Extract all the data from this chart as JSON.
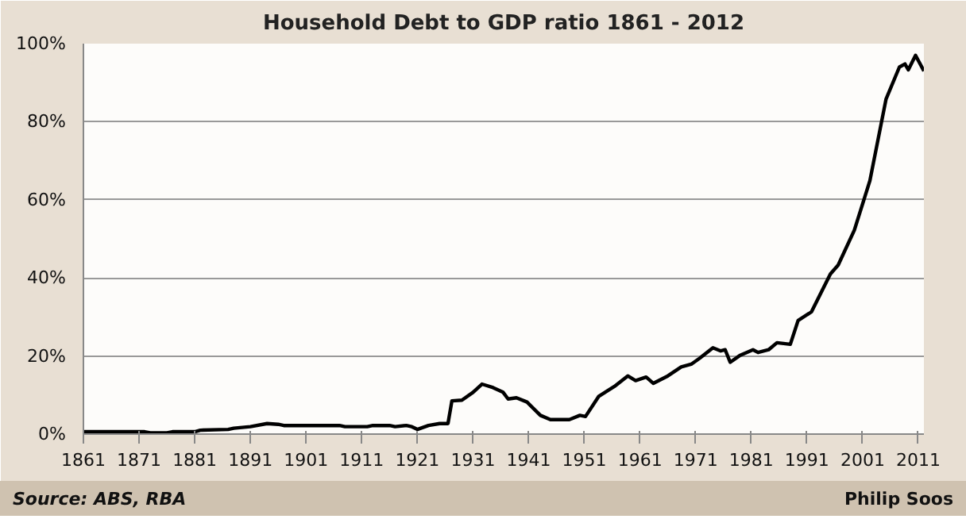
{
  "chart_data": {
    "type": "line",
    "title": "Household Debt to GDP ratio 1861 - 2012",
    "x": [
      1861,
      1872,
      1873,
      1876,
      1877,
      1881,
      1882,
      1887,
      1888,
      1891,
      1894,
      1896,
      1897,
      1907,
      1908,
      1912,
      1913,
      1916,
      1917,
      1919,
      1920,
      1921,
      1923,
      1925,
      1926.5,
      1927.2,
      1929,
      1931,
      1932.6,
      1934.6,
      1936.4,
      1937.3,
      1938.8,
      1940.7,
      1943.1,
      1944.9,
      1948.3,
      1950.2,
      1951.2,
      1953.6,
      1956.4,
      1958.8,
      1960.2,
      1962.1,
      1963.4,
      1966,
      1968.4,
      1970.2,
      1971.7,
      1974.1,
      1975.5,
      1976.3,
      1977.2,
      1978.9,
      1981.3,
      1982.2,
      1984.1,
      1985.6,
      1988,
      1989.4,
      1991.8,
      1995.2,
      1996.6,
      1999.5,
      2002.3,
      2005.2,
      2007.6,
      2008.6,
      2009.2,
      2010.5,
      2012
    ],
    "series": [
      {
        "color": "#000000",
        "values": [
          0.6,
          0.6,
          0.3,
          0.3,
          0.6,
          0.6,
          1.0,
          1.2,
          1.5,
          1.9,
          2.7,
          2.5,
          2.2,
          2.2,
          1.9,
          1.9,
          2.2,
          2.2,
          1.9,
          2.2,
          1.9,
          1.2,
          2.2,
          2.7,
          2.7,
          8.5,
          8.7,
          10.7,
          12.8,
          11.9,
          10.7,
          9.0,
          9.3,
          8.2,
          4.8,
          3.7,
          3.7,
          4.8,
          4.5,
          9.7,
          12.2,
          14.9,
          13.7,
          14.6,
          13.0,
          14.9,
          17.2,
          17.9,
          19.4,
          22.1,
          21.3,
          21.6,
          18.4,
          20.1,
          21.6,
          20.9,
          21.6,
          23.4,
          23.0,
          29.1,
          31.3,
          41.0,
          43.3,
          52.2,
          64.9,
          85.8,
          94.0,
          94.8,
          93.3,
          97.0,
          93.0
        ]
      }
    ],
    "xlim": [
      1861,
      2012
    ],
    "xticks": [
      1861,
      1871,
      1881,
      1891,
      1901,
      1911,
      1921,
      1931,
      1941,
      1951,
      1961,
      1971,
      1981,
      1991,
      2001,
      2011
    ],
    "ylim": [
      0,
      100
    ],
    "yticks": [
      {
        "value": 0,
        "label": "0%"
      },
      {
        "value": 20,
        "label": "20%"
      },
      {
        "value": 40,
        "label": "40%"
      },
      {
        "value": 60,
        "label": "60%"
      },
      {
        "value": 80,
        "label": "80%"
      },
      {
        "value": 100,
        "label": "100%"
      }
    ],
    "grid": "y",
    "line_style": "solid",
    "annotations": [
      "Source: ABS, RBA",
      "Philip Soos"
    ]
  }
}
